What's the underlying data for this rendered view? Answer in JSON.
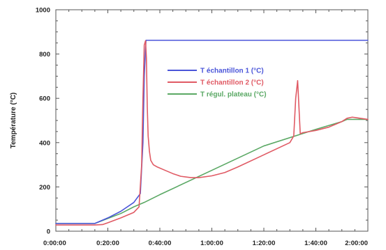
{
  "chart_data": {
    "type": "line",
    "title": "",
    "xlabel": "",
    "ylabel": "Température (°C)",
    "xlim": [
      "0:00:00",
      "2:00:00"
    ],
    "ylim": [
      0,
      1000
    ],
    "x_ticks": [
      "0:00:00",
      "0:20:00",
      "0:40:00",
      "1:00:00",
      "1:20:00",
      "1:40:00",
      "2:00:00"
    ],
    "y_ticks": [
      "0",
      "200",
      "400",
      "600",
      "800",
      "1000"
    ],
    "grid": false,
    "legend_position": "center-right",
    "series": [
      {
        "name": "T échantillon 1 (°C)",
        "color": "#4a55d9",
        "x": [
          "0:00:00",
          "0:10:00",
          "0:15:00",
          "0:20:00",
          "0:25:00",
          "0:30:00",
          "0:32:30",
          "0:33:30",
          "0:34:00",
          "0:34:40",
          "0:40:00",
          "1:00:00",
          "1:20:00",
          "1:40:00",
          "2:00:00"
        ],
        "y": [
          35,
          35,
          35,
          60,
          90,
          130,
          170,
          400,
          700,
          862,
          862,
          862,
          862,
          862,
          862
        ]
      },
      {
        "name": "T échantillon 2 (°C)",
        "color": "#e05a64",
        "x": [
          "0:00:00",
          "0:15:00",
          "0:18:00",
          "0:20:00",
          "0:25:00",
          "0:30:00",
          "0:32:00",
          "0:33:00",
          "0:33:30",
          "0:34:00",
          "0:34:30",
          "0:34:50",
          "0:35:10",
          "0:35:30",
          "0:36:00",
          "0:36:30",
          "0:37:30",
          "0:39:00",
          "0:42:00",
          "0:45:00",
          "0:48:00",
          "0:52:00",
          "0:55:00",
          "1:00:00",
          "1:05:00",
          "1:10:00",
          "1:20:00",
          "1:30:00",
          "1:31:30",
          "1:32:15",
          "1:33:00",
          "1:33:30",
          "1:34:00",
          "1:35:00",
          "1:40:00",
          "1:45:00",
          "1:50:00",
          "1:52:00",
          "1:54:00",
          "2:00:00"
        ],
        "y": [
          28,
          28,
          30,
          38,
          60,
          85,
          110,
          300,
          600,
          840,
          860,
          780,
          560,
          430,
          360,
          320,
          300,
          290,
          275,
          260,
          248,
          242,
          242,
          250,
          265,
          290,
          345,
          400,
          430,
          600,
          680,
          560,
          440,
          445,
          455,
          470,
          495,
          510,
          515,
          505
        ]
      },
      {
        "name": "T régul. plateau (°C)",
        "color": "#5aa864",
        "x": [
          "0:00:00",
          "0:15:00",
          "0:25:00",
          "0:30:00",
          "0:34:00",
          "0:40:00",
          "1:00:00",
          "1:20:00",
          "1:40:00",
          "1:50:00",
          "1:52:00",
          "2:00:00"
        ],
        "y": [
          35,
          35,
          80,
          110,
          130,
          165,
          275,
          385,
          460,
          495,
          505,
          505
        ]
      }
    ]
  }
}
